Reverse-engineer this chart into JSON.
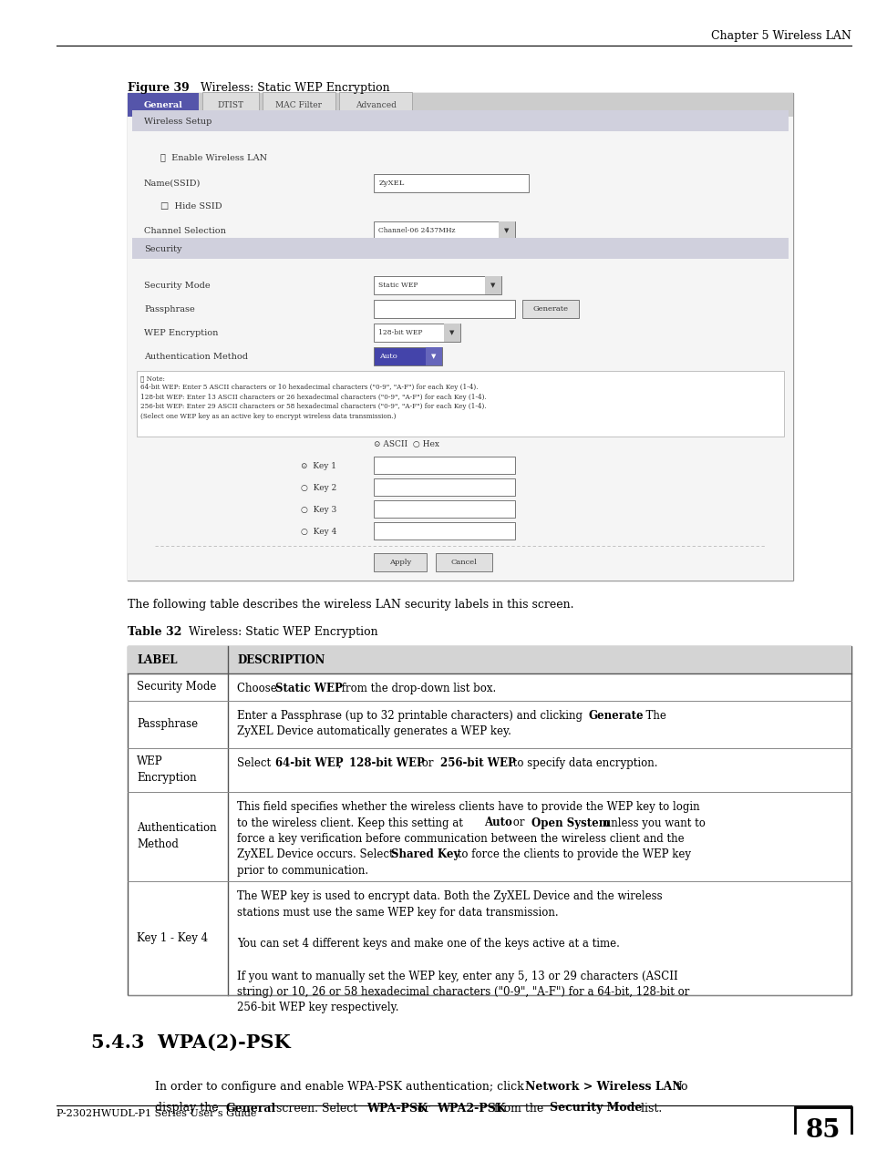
{
  "page_width": 9.54,
  "page_height": 12.35,
  "bg_color": "#ffffff",
  "header_text": "Chapter 5 Wireless LAN",
  "figure_label": "Figure 39",
  "figure_title": "Wireless: Static WEP Encryption",
  "table_intro": "The following table describes the wireless LAN security labels in this screen.",
  "table_label": "Table 32",
  "table_title": "Wireless: Static WEP Encryption",
  "section_num": "5.4.3",
  "section_title": "WPA(2)-PSK",
  "footer_text": "P-2302HWUDL-P1 Series User’s Guide",
  "footer_num": "85",
  "table_header_bg": "#d4d4d4",
  "table_rows": [
    {
      "label": "Security Mode",
      "label_lines": [
        "Security Mode"
      ],
      "desc_lines": [
        [
          {
            "text": "Choose ",
            "bold": false
          },
          {
            "text": "Static WEP",
            "bold": true
          },
          {
            "text": " from the drop-down list box.",
            "bold": false
          }
        ]
      ]
    },
    {
      "label": "Passphrase",
      "label_lines": [
        "Passphrase"
      ],
      "desc_lines": [
        [
          {
            "text": "Enter a Passphrase (up to 32 printable characters) and clicking ",
            "bold": false
          },
          {
            "text": "Generate",
            "bold": true
          },
          {
            "text": ". The",
            "bold": false
          }
        ],
        [
          {
            "text": "ZyXEL Device automatically generates a WEP key.",
            "bold": false
          }
        ]
      ]
    },
    {
      "label": "WEP Encryption",
      "label_lines": [
        "WEP",
        "Encryption"
      ],
      "desc_lines": [
        [
          {
            "text": "Select ",
            "bold": false
          },
          {
            "text": "64-bit WEP",
            "bold": true
          },
          {
            "text": ", ",
            "bold": false
          },
          {
            "text": "128-bit WEP",
            "bold": true
          },
          {
            "text": " or ",
            "bold": false
          },
          {
            "text": "256-bit WEP",
            "bold": true
          },
          {
            "text": " to specify data encryption.",
            "bold": false
          }
        ]
      ]
    },
    {
      "label": "Authentication Method",
      "label_lines": [
        "Authentication",
        "Method"
      ],
      "desc_lines": [
        [
          {
            "text": "This field specifies whether the wireless clients have to provide the WEP key to login",
            "bold": false
          }
        ],
        [
          {
            "text": "to the wireless client. Keep this setting at ",
            "bold": false
          },
          {
            "text": "Auto",
            "bold": true
          },
          {
            "text": " or ",
            "bold": false
          },
          {
            "text": "Open System",
            "bold": true
          },
          {
            "text": " unless you want to",
            "bold": false
          }
        ],
        [
          {
            "text": "force a key verification before communication between the wireless client and the",
            "bold": false
          }
        ],
        [
          {
            "text": "ZyXEL Device occurs. Select ",
            "bold": false
          },
          {
            "text": "Shared Key",
            "bold": true
          },
          {
            "text": " to force the clients to provide the WEP key",
            "bold": false
          }
        ],
        [
          {
            "text": "prior to communication.",
            "bold": false
          }
        ]
      ]
    },
    {
      "label": "Key 1 - Key 4",
      "label_lines": [
        "Key 1 - Key 4"
      ],
      "desc_lines": [
        [
          {
            "text": "The WEP key is used to encrypt data. Both the ZyXEL Device and the wireless",
            "bold": false
          }
        ],
        [
          {
            "text": "stations must use the same WEP key for data transmission.",
            "bold": false
          }
        ],
        [
          {
            "text": "",
            "bold": false
          }
        ],
        [
          {
            "text": "You can set 4 different keys and make one of the keys active at a time.",
            "bold": false
          }
        ],
        [
          {
            "text": "",
            "bold": false
          }
        ],
        [
          {
            "text": "If you want to manually set the WEP key, enter any 5, 13 or 29 characters (ASCII",
            "bold": false
          }
        ],
        [
          {
            "text": "string) or 10, 26 or 58 hexadecimal characters (\"0-9\", \"A-F\") for a 64-bit, 128-bit or",
            "bold": false
          }
        ],
        [
          {
            "text": "256-bit WEP key respectively.",
            "bold": false
          }
        ]
      ]
    }
  ]
}
